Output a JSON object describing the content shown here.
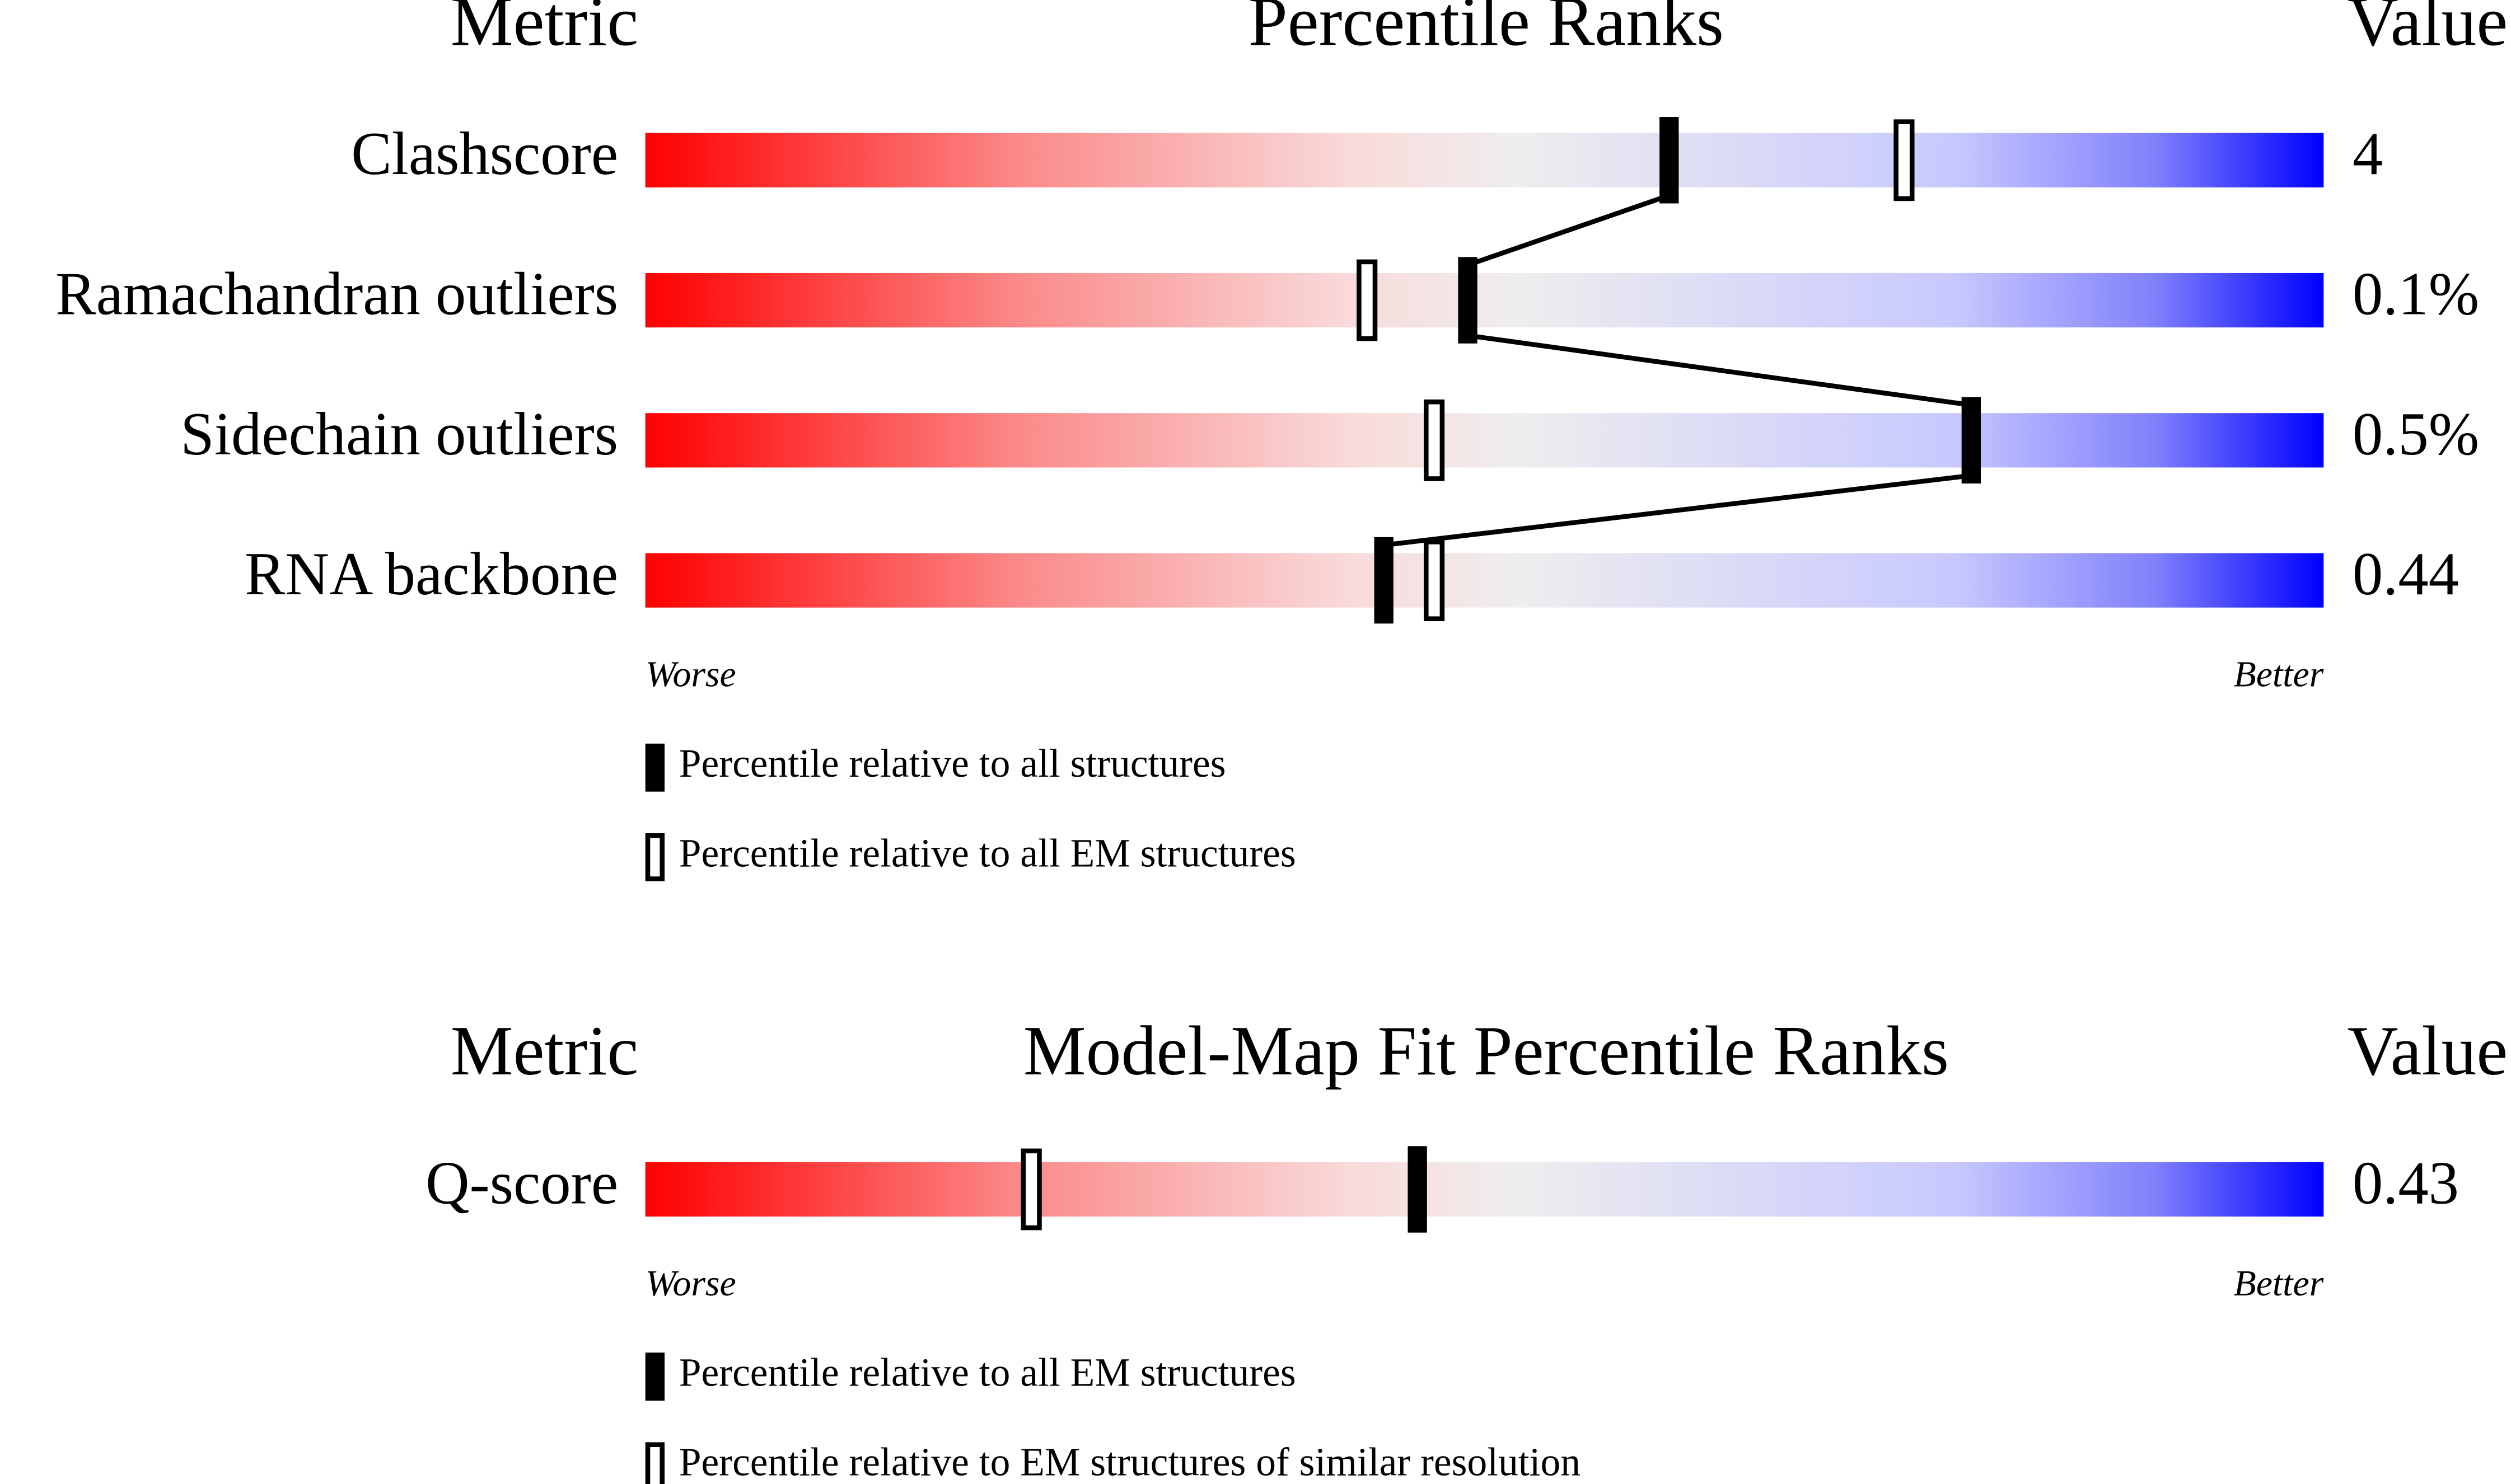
{
  "chart_data": [
    {
      "type": "percentile-slider",
      "metric_header": "Metric",
      "title": "Percentile Ranks",
      "value_header": "Value",
      "categories": [
        "Clashscore",
        "Ramachandran outliers",
        "Sidechain outliers",
        "RNA backbone"
      ],
      "metric_values": [
        "4",
        "0.1%",
        "0.5%",
        "0.44"
      ],
      "xlim": [
        0,
        100
      ],
      "worse_label": "Worse",
      "better_label": "Better",
      "series": [
        {
          "name": "Percentile relative to all structures",
          "style": "filled",
          "color": "#000000",
          "values": [
            61,
            49,
            79,
            44
          ]
        },
        {
          "name": "Percentile relative to all EM structures",
          "style": "open",
          "color": "#000000",
          "values": [
            75,
            43,
            47,
            47
          ]
        }
      ],
      "connect_series": 0
    },
    {
      "type": "percentile-slider",
      "metric_header": "Metric",
      "title": "Model-Map Fit Percentile Ranks",
      "value_header": "Value",
      "categories": [
        "Q-score"
      ],
      "metric_values": [
        "0.43"
      ],
      "xlim": [
        0,
        100
      ],
      "worse_label": "Worse",
      "better_label": "Better",
      "series": [
        {
          "name": "Percentile relative to all EM structures",
          "style": "filled",
          "color": "#000000",
          "values": [
            46
          ]
        },
        {
          "name": "Percentile relative to EM structures of similar resolution",
          "style": "open",
          "color": "#000000",
          "values": [
            23
          ]
        }
      ],
      "connect_series": 0
    }
  ]
}
